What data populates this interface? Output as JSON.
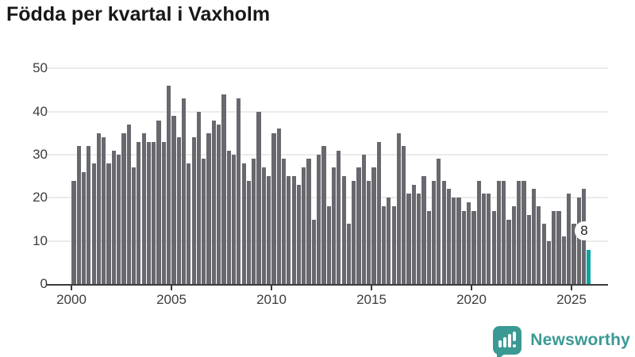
{
  "title": "Födda per kvartal i Vaxholm",
  "branding": {
    "name": "Newsworthy",
    "brand_color": "#3a9a93"
  },
  "annotation": {
    "label": "8"
  },
  "chart_data": {
    "type": "bar",
    "title": "Födda per kvartal i Vaxholm",
    "xlabel": "",
    "ylabel": "",
    "ylim": [
      0,
      50
    ],
    "grid": true,
    "bar_color": "#68686e",
    "highlight_color": "#0ba5a5",
    "x_tick_labels": [
      "2000",
      "2005",
      "2010",
      "2015",
      "2020",
      "2025"
    ],
    "y_tick_labels": [
      "0",
      "10",
      "20",
      "30",
      "40",
      "50"
    ],
    "x_unit": "quarter",
    "values_by_year": {
      "2000": [
        24,
        32,
        26,
        32
      ],
      "2001": [
        28,
        35,
        34,
        28
      ],
      "2002": [
        31,
        30,
        35,
        37
      ],
      "2003": [
        27,
        33,
        35,
        33
      ],
      "2004": [
        33,
        38,
        33,
        46
      ],
      "2005": [
        39,
        34,
        43,
        28
      ],
      "2006": [
        34,
        40,
        29,
        35
      ],
      "2007": [
        38,
        37,
        44,
        31
      ],
      "2008": [
        30,
        43,
        28,
        24
      ],
      "2009": [
        29,
        40,
        27,
        25
      ],
      "2010": [
        35,
        36,
        29,
        25
      ],
      "2011": [
        25,
        23,
        27,
        29
      ],
      "2012": [
        15,
        30,
        32,
        18
      ],
      "2013": [
        27,
        31,
        25,
        14
      ],
      "2014": [
        24,
        27,
        30,
        24
      ],
      "2015": [
        27,
        33,
        18,
        20
      ],
      "2016": [
        18,
        35,
        32,
        21
      ],
      "2017": [
        23,
        21,
        25,
        17
      ],
      "2018": [
        24,
        29,
        24,
        22
      ],
      "2019": [
        20,
        20,
        17,
        19
      ],
      "2020": [
        17,
        24,
        21,
        21
      ],
      "2021": [
        17,
        24,
        24,
        15
      ],
      "2022": [
        18,
        24,
        24,
        16
      ],
      "2023": [
        22,
        18,
        14,
        10
      ],
      "2024": [
        17,
        17,
        11,
        21
      ],
      "2025": [
        14,
        20,
        22,
        8
      ]
    },
    "highlight": {
      "quarter": "2025 Q4",
      "value": 8,
      "label": "8"
    }
  }
}
